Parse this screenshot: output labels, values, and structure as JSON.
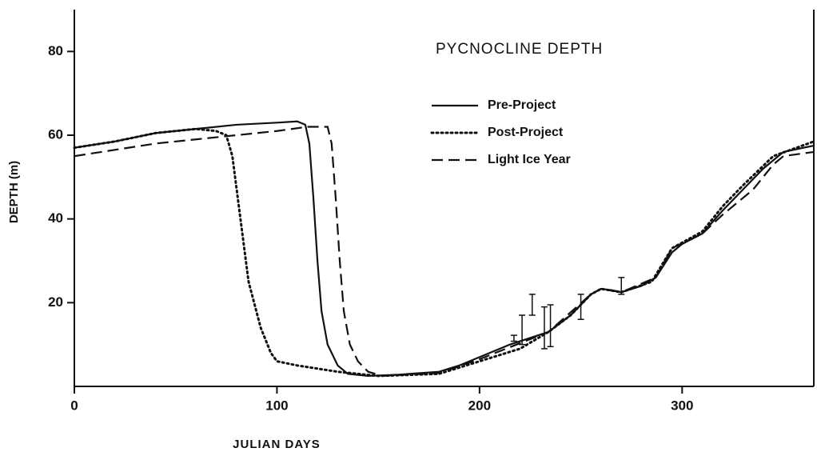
{
  "chart_data": {
    "type": "line",
    "title": "PYCNOCLINE DEPTH",
    "xlabel": "JULIAN DAYS",
    "ylabel": "DEPTH (m)",
    "xlim": [
      0,
      365
    ],
    "ylim": [
      0,
      90
    ],
    "xticks": [
      0,
      100,
      200,
      300
    ],
    "yticks": [
      20,
      40,
      60,
      80
    ],
    "color": "#111111",
    "series": [
      {
        "name": "Pre-Project",
        "style": "solid",
        "x": [
          0,
          20,
          40,
          60,
          80,
          100,
          110,
          114,
          116,
          118,
          120,
          122,
          125,
          130,
          135,
          145,
          160,
          180,
          190,
          200,
          215,
          234,
          245,
          255,
          260,
          265,
          270,
          280,
          287,
          295,
          300,
          310,
          320,
          330,
          340,
          350,
          365
        ],
        "values": [
          57,
          58.5,
          60.5,
          61.5,
          62.5,
          63,
          63.3,
          62.5,
          58,
          45,
          30,
          18,
          10,
          5,
          3,
          2.5,
          2.8,
          3.5,
          5,
          7,
          10,
          13,
          17,
          22,
          23.3,
          23,
          22.5,
          24,
          26,
          32,
          34,
          36.5,
          42,
          47,
          52,
          56,
          57.5
        ]
      },
      {
        "name": "Post-Project",
        "style": "dotted",
        "x": [
          0,
          20,
          40,
          60,
          70,
          75,
          78,
          82,
          86,
          92,
          97,
          100,
          110,
          130,
          150,
          180,
          200,
          220,
          234,
          245,
          255,
          260,
          270,
          285,
          295,
          310,
          320,
          330,
          345,
          365
        ],
        "values": [
          57,
          58.5,
          60.5,
          61.5,
          61,
          60,
          55,
          40,
          25,
          14,
          8,
          6,
          5,
          3.5,
          2.5,
          3,
          6,
          9,
          13,
          17,
          22,
          23.3,
          22.5,
          25,
          33,
          37,
          43,
          48,
          55,
          58.5
        ]
      },
      {
        "name": "Light Ice Year",
        "style": "dashed",
        "x": [
          0,
          20,
          40,
          60,
          80,
          100,
          115,
          125,
          127,
          129,
          131,
          133,
          136,
          140,
          145,
          152,
          180,
          200,
          234,
          255,
          260,
          270,
          287,
          295,
          310,
          320,
          335,
          345,
          350,
          365
        ],
        "values": [
          55,
          56.5,
          58,
          59,
          60,
          61,
          62,
          62,
          58,
          45,
          30,
          18,
          10,
          6,
          3.5,
          2.5,
          3.2,
          6.5,
          13,
          22,
          23.3,
          22.5,
          26,
          33,
          36.5,
          41,
          47,
          53,
          55,
          56
        ]
      }
    ],
    "error_bars": {
      "x": [
        217,
        221,
        226,
        232,
        235,
        250,
        270
      ],
      "values": [
        11.5,
        13.5,
        19.5,
        14,
        14.5,
        19,
        24
      ],
      "errors": [
        0.7,
        3.5,
        2.5,
        5,
        5,
        3,
        2
      ]
    }
  }
}
